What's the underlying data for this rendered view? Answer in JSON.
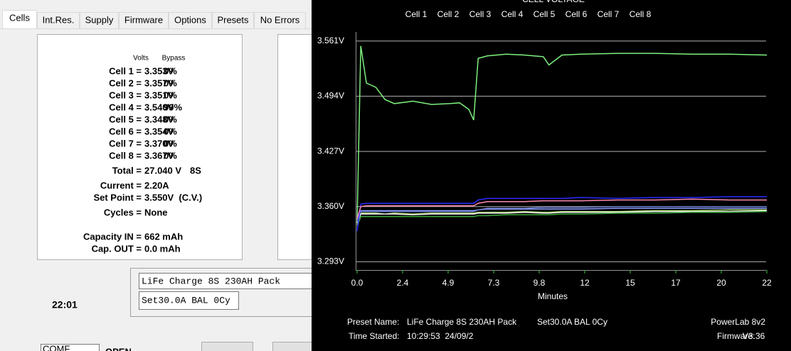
{
  "left": {
    "tabs": [
      "Cells",
      "Int.Res.",
      "Supply",
      "Firmware",
      "Options",
      "Presets",
      "No Errors"
    ],
    "header": [
      "Volts",
      "Bypass"
    ],
    "cells": [
      {
        "label": "Cell 1 =",
        "volts": "3.353V",
        "bypass": "0%"
      },
      {
        "label": "Cell 2 =",
        "volts": "3.357V",
        "bypass": "0%"
      },
      {
        "label": "Cell 3 =",
        "volts": "3.351V",
        "bypass": "0%"
      },
      {
        "label": "Cell 4 =",
        "volts": "3.540V",
        "bypass": "99%"
      },
      {
        "label": "Cell 5 =",
        "volts": "3.348V",
        "bypass": "0%"
      },
      {
        "label": "Cell 6 =",
        "volts": "3.354V",
        "bypass": "0%"
      },
      {
        "label": "Cell 7 =",
        "volts": "3.370V",
        "bypass": "0%"
      },
      {
        "label": "Cell 8 =",
        "volts": "3.367V",
        "bypass": "0%"
      }
    ],
    "total": {
      "label": "Total =",
      "value": "27.040 V",
      "extra": "8S"
    },
    "rows": [
      {
        "label": "Current =",
        "value": "2.20A"
      },
      {
        "label": "Set Point =",
        "value": "3.550V  (C.V.)"
      },
      {
        "label": "Cycles =",
        "value": "None"
      },
      {
        "label": "Capacity IN =",
        "value": "662 mAh"
      },
      {
        "label": "Cap. OUT =",
        "value": "0.0 mAh"
      }
    ],
    "preset_name": "LiFe Charge 8S 230AH Pack",
    "preset_settings": "Set30.0A BAL 0Cy",
    "clock": "22:01",
    "port": "COMF",
    "port_status": "OPEN"
  },
  "chart_data": {
    "type": "line",
    "title": "CELL VOLTAGE",
    "xlabel": "Minutes",
    "x": [
      0,
      0.2,
      0.5,
      1,
      1.5,
      2,
      3,
      4,
      5,
      5.5,
      6,
      6.26,
      6.5,
      7,
      8,
      9,
      10,
      10.3,
      11,
      12,
      14,
      16,
      18,
      20,
      22
    ],
    "xlim": [
      0,
      22
    ],
    "ylim": [
      3.283,
      3.572
    ],
    "xticks": [
      {
        "value": 0,
        "label": "0.0"
      },
      {
        "value": 2.444,
        "label": "2.4"
      },
      {
        "value": 4.889,
        "label": "4.9"
      },
      {
        "value": 7.333,
        "label": "7.3"
      },
      {
        "value": 9.778,
        "label": "9.8"
      },
      {
        "value": 12.222,
        "label": "12"
      },
      {
        "value": 14.667,
        "label": "15"
      },
      {
        "value": 17.111,
        "label": "17"
      },
      {
        "value": 19.556,
        "label": "20"
      },
      {
        "value": 22,
        "label": "22"
      }
    ],
    "yticks": [
      {
        "value": 3.293,
        "label": "3.293V"
      },
      {
        "value": 3.36,
        "label": "3.360V"
      },
      {
        "value": 3.427,
        "label": "3.427V"
      },
      {
        "value": 3.494,
        "label": "3.494V"
      },
      {
        "value": 3.561,
        "label": "3.561V"
      }
    ],
    "grid": true,
    "series": [
      {
        "name": "Cell 1",
        "color": "#b0e070",
        "values": [
          3.34,
          3.352,
          3.352,
          3.352,
          3.351,
          3.352,
          3.351,
          3.352,
          3.352,
          3.352,
          3.352,
          3.352,
          3.353,
          3.353,
          3.353,
          3.354,
          3.353,
          3.353,
          3.354,
          3.354,
          3.354,
          3.355,
          3.355,
          3.356,
          3.356
        ]
      },
      {
        "name": "Cell 2",
        "color": "#8a9cff",
        "values": [
          3.345,
          3.355,
          3.355,
          3.355,
          3.355,
          3.355,
          3.355,
          3.355,
          3.355,
          3.355,
          3.355,
          3.355,
          3.356,
          3.357,
          3.357,
          3.357,
          3.357,
          3.357,
          3.357,
          3.357,
          3.358,
          3.358,
          3.358,
          3.358,
          3.358
        ]
      },
      {
        "name": "Cell 3",
        "color": "#e8e8e8",
        "values": [
          3.338,
          3.351,
          3.351,
          3.351,
          3.351,
          3.351,
          3.35,
          3.351,
          3.351,
          3.351,
          3.351,
          3.351,
          3.352,
          3.352,
          3.352,
          3.353,
          3.352,
          3.352,
          3.353,
          3.353,
          3.353,
          3.354,
          3.354,
          3.354,
          3.355
        ]
      },
      {
        "name": "Cell 4",
        "color": "#7ef07e",
        "values": [
          3.34,
          3.555,
          3.51,
          3.505,
          3.49,
          3.485,
          3.488,
          3.484,
          3.485,
          3.486,
          3.478,
          3.465,
          3.54,
          3.543,
          3.545,
          3.544,
          3.542,
          3.532,
          3.544,
          3.545,
          3.546,
          3.546,
          3.545,
          3.545,
          3.544
        ]
      },
      {
        "name": "Cell 5",
        "color": "#3aa83a",
        "values": [
          3.336,
          3.348,
          3.348,
          3.348,
          3.348,
          3.348,
          3.348,
          3.348,
          3.348,
          3.348,
          3.348,
          3.348,
          3.349,
          3.349,
          3.35,
          3.35,
          3.35,
          3.35,
          3.351,
          3.351,
          3.352,
          3.352,
          3.353,
          3.353,
          3.354
        ]
      },
      {
        "name": "Cell 6",
        "color": "#6a78c8",
        "values": [
          3.342,
          3.354,
          3.354,
          3.354,
          3.354,
          3.354,
          3.354,
          3.354,
          3.354,
          3.354,
          3.354,
          3.354,
          3.356,
          3.358,
          3.358,
          3.358,
          3.359,
          3.359,
          3.359,
          3.359,
          3.36,
          3.36,
          3.36,
          3.36,
          3.36
        ]
      },
      {
        "name": "Cell 7",
        "color": "#2a2aff",
        "values": [
          3.33,
          3.363,
          3.364,
          3.364,
          3.364,
          3.364,
          3.364,
          3.364,
          3.364,
          3.364,
          3.364,
          3.364,
          3.368,
          3.37,
          3.37,
          3.37,
          3.37,
          3.37,
          3.37,
          3.371,
          3.37,
          3.371,
          3.371,
          3.372,
          3.372
        ]
      },
      {
        "name": "Cell 8",
        "color": "#ff8ab0",
        "values": [
          3.345,
          3.36,
          3.361,
          3.361,
          3.361,
          3.361,
          3.361,
          3.361,
          3.361,
          3.361,
          3.361,
          3.361,
          3.364,
          3.366,
          3.366,
          3.366,
          3.367,
          3.367,
          3.367,
          3.367,
          3.368,
          3.368,
          3.369,
          3.368,
          3.368
        ]
      }
    ]
  },
  "chart_footer": {
    "preset_label": "Preset Name:",
    "preset_name": "LiFe Charge 8S 230AH Pack",
    "preset_settings": "Set30.0A BAL 0Cy",
    "device": "PowerLab 8v2",
    "time_label": "Time Started:",
    "time": "10:29:53  24/09/2",
    "firmware_label": "Firmware:",
    "firmware": "V3.36"
  }
}
